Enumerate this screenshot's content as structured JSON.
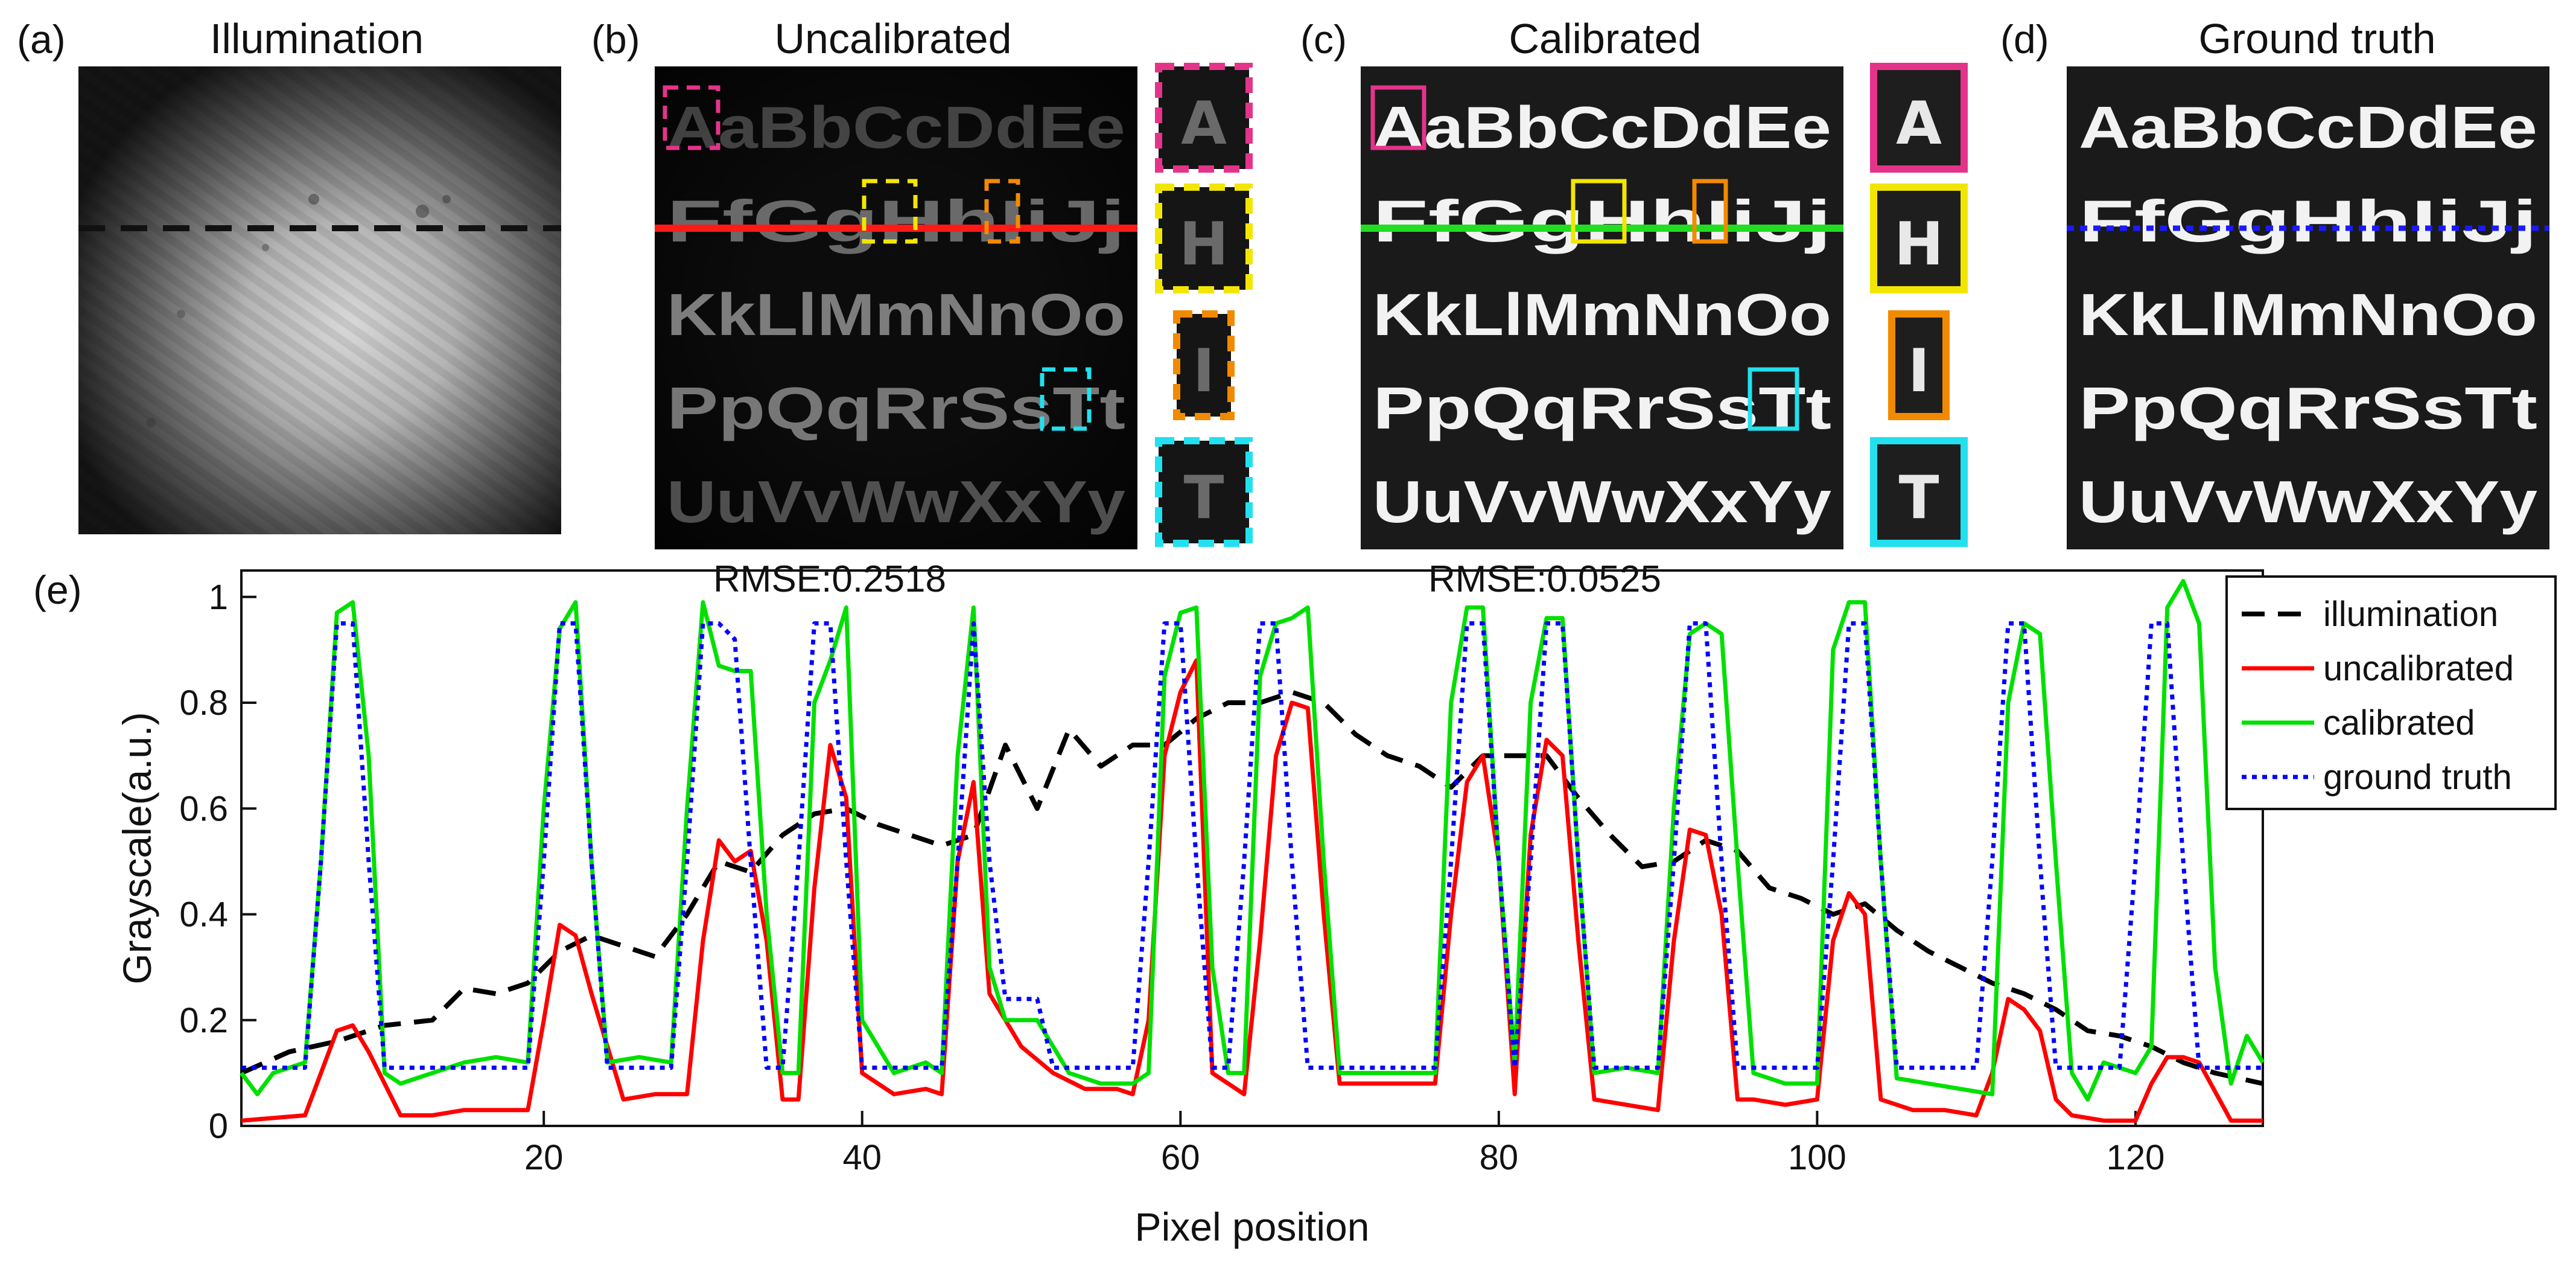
{
  "panels": {
    "a": {
      "label": "(a)",
      "title": "Illumination"
    },
    "b": {
      "label": "(b)",
      "title": "Uncalibrated",
      "rmse": "RMSE:0.2518"
    },
    "c": {
      "label": "(c)",
      "title": "Calibrated",
      "rmse": "RMSE:0.0525"
    },
    "d": {
      "label": "(d)",
      "title": "Ground truth"
    },
    "e": {
      "label": "(e)"
    }
  },
  "letter_rows": [
    "AaBbCcDdEe",
    "FfGgHhIiJj",
    "KkLlMmNnOo",
    "PpQqRrSsTt",
    "UuVvWwXxYy"
  ],
  "insets": [
    {
      "letter": "A",
      "color": "#e4348a"
    },
    {
      "letter": "H",
      "color": "#f2e600"
    },
    {
      "letter": "I",
      "color": "#f28a00"
    },
    {
      "letter": "T",
      "color": "#22e0ee"
    }
  ],
  "line_colors": {
    "uncalibrated_row": "#ff1a1a",
    "calibrated_row": "#22dd22",
    "ground_truth_row": "#1a1aff",
    "illumination_row": "#111111"
  },
  "chart_data": {
    "type": "line",
    "xlabel": "Pixel position",
    "ylabel": "Grayscale(a.u.)",
    "xlim": [
      1,
      128
    ],
    "ylim": [
      0,
      1.05
    ],
    "xticks": [
      20,
      40,
      60,
      80,
      100,
      120
    ],
    "yticks": [
      0,
      0.2,
      0.4,
      0.6,
      0.8,
      1
    ],
    "legend_position": "top-right",
    "series": [
      {
        "name": "illumination",
        "color": "#000000",
        "style": "dashed",
        "x": [
          1,
          4,
          7,
          10,
          13,
          15,
          17,
          19,
          21,
          23,
          25,
          27,
          29,
          31,
          33,
          35,
          37,
          39,
          41,
          43,
          45,
          47,
          49,
          51,
          53,
          55,
          57,
          59,
          61,
          63,
          65,
          67,
          69,
          71,
          73,
          75,
          77,
          79,
          81,
          83,
          85,
          87,
          89,
          91,
          93,
          95,
          97,
          99,
          101,
          103,
          105,
          107,
          109,
          111,
          113,
          115,
          117,
          119,
          121,
          123,
          125,
          128
        ],
        "y": [
          0.1,
          0.14,
          0.16,
          0.19,
          0.2,
          0.26,
          0.25,
          0.27,
          0.33,
          0.36,
          0.34,
          0.32,
          0.4,
          0.5,
          0.48,
          0.55,
          0.59,
          0.6,
          0.57,
          0.55,
          0.53,
          0.55,
          0.72,
          0.6,
          0.75,
          0.68,
          0.72,
          0.72,
          0.77,
          0.8,
          0.8,
          0.82,
          0.8,
          0.74,
          0.7,
          0.68,
          0.64,
          0.7,
          0.7,
          0.7,
          0.62,
          0.55,
          0.49,
          0.5,
          0.54,
          0.52,
          0.45,
          0.43,
          0.4,
          0.42,
          0.37,
          0.33,
          0.3,
          0.27,
          0.25,
          0.22,
          0.18,
          0.17,
          0.15,
          0.12,
          0.1,
          0.08
        ]
      },
      {
        "name": "uncalibrated",
        "color": "#ff0000",
        "style": "solid",
        "x": [
          1,
          5,
          7,
          8,
          9,
          11,
          13,
          15,
          17,
          19,
          20,
          21,
          22,
          23,
          25,
          27,
          29,
          30,
          31,
          32,
          33,
          34,
          35,
          36,
          37,
          38,
          39,
          40,
          42,
          44,
          45,
          46,
          47,
          48,
          50,
          52,
          54,
          56,
          57,
          58,
          59,
          60,
          61,
          62,
          64,
          65,
          66,
          67,
          68,
          69,
          70,
          72,
          74,
          76,
          77,
          78,
          79,
          80,
          81,
          82,
          83,
          84,
          85,
          86,
          88,
          90,
          91,
          92,
          93,
          94,
          95,
          96,
          98,
          100,
          101,
          102,
          103,
          104,
          106,
          108,
          110,
          111,
          112,
          113,
          114,
          115,
          116,
          118,
          120,
          121,
          122,
          123,
          124,
          126,
          128
        ],
        "y": [
          0.01,
          0.02,
          0.18,
          0.19,
          0.14,
          0.02,
          0.02,
          0.03,
          0.03,
          0.03,
          0.2,
          0.38,
          0.36,
          0.25,
          0.05,
          0.06,
          0.06,
          0.35,
          0.54,
          0.5,
          0.52,
          0.35,
          0.05,
          0.05,
          0.45,
          0.72,
          0.62,
          0.1,
          0.06,
          0.07,
          0.06,
          0.5,
          0.65,
          0.25,
          0.15,
          0.1,
          0.07,
          0.07,
          0.06,
          0.2,
          0.7,
          0.82,
          0.88,
          0.1,
          0.06,
          0.35,
          0.7,
          0.8,
          0.79,
          0.4,
          0.08,
          0.08,
          0.08,
          0.08,
          0.4,
          0.65,
          0.7,
          0.5,
          0.06,
          0.55,
          0.73,
          0.7,
          0.35,
          0.05,
          0.04,
          0.03,
          0.35,
          0.56,
          0.55,
          0.4,
          0.05,
          0.05,
          0.04,
          0.05,
          0.35,
          0.44,
          0.4,
          0.05,
          0.03,
          0.03,
          0.02,
          0.1,
          0.24,
          0.22,
          0.18,
          0.05,
          0.02,
          0.01,
          0.01,
          0.08,
          0.13,
          0.13,
          0.12,
          0.01,
          0.01
        ]
      },
      {
        "name": "calibrated",
        "color": "#00e000",
        "style": "solid",
        "x": [
          1,
          2,
          3,
          5,
          6,
          7,
          8,
          9,
          10,
          11,
          13,
          15,
          17,
          19,
          20,
          21,
          22,
          23,
          24,
          26,
          28,
          29,
          30,
          31,
          32,
          33,
          34,
          35,
          36,
          37,
          38,
          39,
          40,
          42,
          44,
          45,
          46,
          47,
          48,
          49,
          51,
          53,
          55,
          57,
          58,
          59,
          60,
          61,
          62,
          63,
          64,
          65,
          66,
          67,
          68,
          69,
          70,
          72,
          74,
          76,
          77,
          78,
          79,
          80,
          81,
          82,
          83,
          84,
          85,
          86,
          88,
          90,
          91,
          92,
          93,
          94,
          95,
          96,
          98,
          100,
          101,
          102,
          103,
          104,
          105,
          107,
          109,
          111,
          112,
          113,
          114,
          115,
          116,
          117,
          118,
          120,
          121,
          122,
          123,
          124,
          125,
          126,
          127,
          128
        ],
        "y": [
          0.1,
          0.06,
          0.1,
          0.12,
          0.5,
          0.97,
          0.99,
          0.7,
          0.1,
          0.08,
          0.1,
          0.12,
          0.13,
          0.12,
          0.6,
          0.94,
          0.99,
          0.5,
          0.12,
          0.13,
          0.12,
          0.6,
          0.99,
          0.87,
          0.86,
          0.86,
          0.4,
          0.1,
          0.1,
          0.8,
          0.88,
          0.98,
          0.2,
          0.1,
          0.12,
          0.1,
          0.7,
          0.98,
          0.3,
          0.2,
          0.2,
          0.1,
          0.08,
          0.08,
          0.1,
          0.85,
          0.97,
          0.98,
          0.3,
          0.1,
          0.1,
          0.85,
          0.95,
          0.96,
          0.98,
          0.5,
          0.1,
          0.1,
          0.1,
          0.1,
          0.8,
          0.98,
          0.98,
          0.5,
          0.12,
          0.8,
          0.96,
          0.96,
          0.5,
          0.1,
          0.11,
          0.1,
          0.6,
          0.93,
          0.95,
          0.93,
          0.5,
          0.1,
          0.08,
          0.08,
          0.9,
          0.99,
          0.99,
          0.5,
          0.09,
          0.08,
          0.07,
          0.06,
          0.8,
          0.95,
          0.93,
          0.5,
          0.1,
          0.05,
          0.12,
          0.1,
          0.15,
          0.98,
          1.03,
          0.95,
          0.3,
          0.08,
          0.17,
          0.12
        ]
      },
      {
        "name": "ground truth",
        "color": "#0000ff",
        "style": "dotted",
        "x": [
          1,
          5,
          6,
          7,
          8,
          9,
          10,
          11,
          19,
          20,
          21,
          22,
          23,
          24,
          28,
          29,
          30,
          31,
          32,
          33,
          34,
          35,
          36,
          37,
          38,
          39,
          40,
          41,
          45,
          46,
          47,
          48,
          49,
          50,
          51,
          52,
          53,
          57,
          58,
          59,
          60,
          61,
          62,
          63,
          64,
          65,
          66,
          67,
          68,
          69,
          70,
          76,
          77,
          78,
          79,
          80,
          81,
          82,
          83,
          84,
          85,
          86,
          90,
          91,
          92,
          93,
          94,
          95,
          96,
          100,
          101,
          102,
          103,
          104,
          105,
          110,
          111,
          112,
          113,
          114,
          115,
          119,
          120,
          121,
          122,
          123,
          124,
          125,
          128
        ],
        "y": [
          0.11,
          0.11,
          0.5,
          0.95,
          0.95,
          0.5,
          0.11,
          0.11,
          0.11,
          0.5,
          0.95,
          0.95,
          0.5,
          0.11,
          0.11,
          0.5,
          0.95,
          0.95,
          0.92,
          0.5,
          0.11,
          0.11,
          0.5,
          0.95,
          0.95,
          0.5,
          0.11,
          0.11,
          0.11,
          0.5,
          0.95,
          0.5,
          0.24,
          0.24,
          0.24,
          0.11,
          0.11,
          0.11,
          0.5,
          0.95,
          0.95,
          0.5,
          0.11,
          0.11,
          0.5,
          0.95,
          0.95,
          0.5,
          0.11,
          0.11,
          0.11,
          0.11,
          0.5,
          0.95,
          0.95,
          0.5,
          0.11,
          0.5,
          0.95,
          0.95,
          0.5,
          0.11,
          0.11,
          0.5,
          0.95,
          0.95,
          0.5,
          0.11,
          0.11,
          0.11,
          0.5,
          0.95,
          0.95,
          0.5,
          0.11,
          0.11,
          0.5,
          0.95,
          0.95,
          0.5,
          0.11,
          0.11,
          0.5,
          0.95,
          0.95,
          0.5,
          0.11,
          0.11,
          0.11
        ]
      }
    ]
  }
}
